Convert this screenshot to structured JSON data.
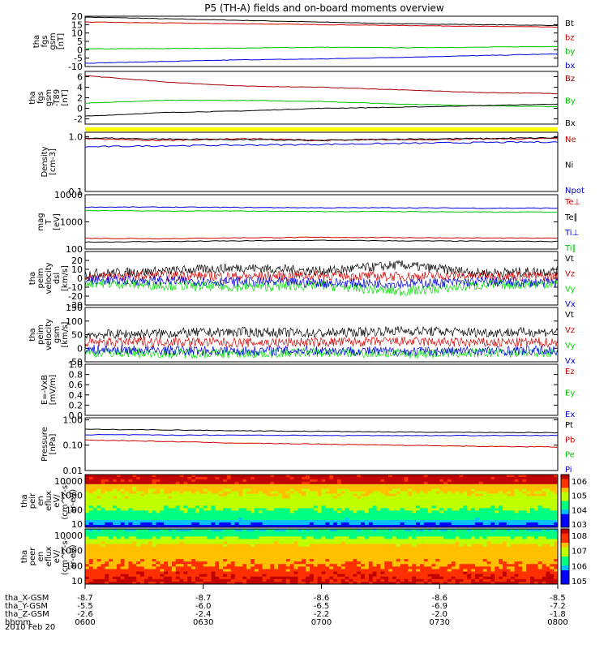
{
  "title": "P5 (TH-A) fields and on-board moments overview",
  "date_label": "2010 Feb 20",
  "colors": {
    "black": "#000000",
    "red": "#d00000",
    "green": "#00e000",
    "blue": "#0000e0",
    "darkred": "#a00000",
    "yellow": "#ffff00"
  },
  "chart_data": [
    {
      "type": "line",
      "id": "fgs_gsm",
      "ylabel": [
        "tha",
        "fgs",
        "gsm",
        "[nT]"
      ],
      "yticks": [
        "20",
        "15",
        "10",
        "5",
        "0",
        "-5",
        "-10"
      ],
      "ylim": [
        -10,
        20
      ],
      "series": [
        {
          "name": "Bt",
          "color": "#000000",
          "values": [
            19.5,
            18.5,
            17.5,
            16.5,
            15.5,
            15.0,
            14.5
          ]
        },
        {
          "name": "bz",
          "color": "#d00000",
          "values": [
            16.5,
            16.0,
            15.5,
            15.0,
            14.5,
            14.0,
            13.5
          ]
        },
        {
          "name": "by",
          "color": "#00c000",
          "values": [
            0.5,
            0.7,
            1.0,
            1.5,
            1.2,
            1.5,
            2.0
          ]
        },
        {
          "name": "bx",
          "color": "#0000e0",
          "values": [
            -8.0,
            -7.0,
            -6.0,
            -5.5,
            -4.5,
            -3.5,
            -2.5
          ]
        }
      ]
    },
    {
      "type": "line",
      "id": "fgs_dsl",
      "ylabel": [
        "tha",
        "fgs",
        "gsm",
        "-T89",
        "[nT]"
      ],
      "yticks": [
        "6",
        "4",
        "2",
        "0",
        "-2"
      ],
      "ylim": [
        -3,
        7
      ],
      "series": [
        {
          "name": "Bz",
          "color": "#a00000",
          "values": [
            6.2,
            5.0,
            4.2,
            4.0,
            3.5,
            3.0,
            2.8
          ]
        },
        {
          "name": "By",
          "color": "#00c000",
          "values": [
            1.0,
            1.5,
            1.5,
            1.3,
            0.8,
            0.5,
            0.3
          ]
        },
        {
          "name": "Bx",
          "color": "#000000",
          "values": [
            -1.5,
            -0.8,
            -0.5,
            0.0,
            0.2,
            0.5,
            0.8
          ]
        }
      ]
    },
    {
      "type": "line",
      "id": "density",
      "scale": "log",
      "ylabel": [
        "Density",
        "[cm-3]"
      ],
      "yticks": [
        "1.0",
        "0.1"
      ],
      "ylim": [
        0.1,
        1.2
      ],
      "series": [
        {
          "name": "Ne",
          "color": "#d00000",
          "values": [
            0.9,
            0.85,
            0.92,
            0.85,
            0.88,
            0.9,
            0.92
          ]
        },
        {
          "name": "Ni",
          "color": "#000000",
          "values": [
            0.95,
            0.9,
            0.88,
            0.85,
            0.9,
            0.92,
            0.95
          ]
        },
        {
          "name": "Npot",
          "color": "#0000e0",
          "values": [
            0.65,
            0.68,
            0.7,
            0.72,
            0.75,
            0.78,
            0.8
          ]
        }
      ]
    },
    {
      "type": "line",
      "id": "temperature",
      "scale": "log",
      "ylabel": [
        "mag",
        "T",
        "[eV]"
      ],
      "ylabel_sup": "3",
      "yticks": [
        "10000",
        "1000",
        "100"
      ],
      "ylim": [
        100,
        10000
      ],
      "series": [
        {
          "name": "Te⊥",
          "color": "#d00000",
          "values": [
            250,
            240,
            260,
            270,
            265,
            255,
            250
          ]
        },
        {
          "name": "Te∥",
          "color": "#000000",
          "values": [
            180,
            190,
            200,
            210,
            200,
            195,
            190
          ]
        },
        {
          "name": "Ti⊥",
          "color": "#0000e0",
          "values": [
            3500,
            3500,
            3400,
            3300,
            3300,
            3200,
            3200
          ]
        },
        {
          "name": "Ti∥",
          "color": "#00c000",
          "values": [
            2600,
            2500,
            2500,
            2400,
            2400,
            2300,
            2300
          ]
        }
      ]
    },
    {
      "type": "line",
      "id": "peim_velocity",
      "ylabel": [
        "tha",
        "peim",
        "velocity",
        "dsl",
        "[km/s]"
      ],
      "yticks": [
        "20",
        "10",
        "0",
        "-10",
        "-20",
        "-30"
      ],
      "ylim": [
        -30,
        30
      ],
      "series": [
        {
          "name": "Vt",
          "color": "#000000",
          "values": [
            5,
            8,
            12,
            8,
            15,
            6,
            8
          ]
        },
        {
          "name": "Vz",
          "color": "#d00000",
          "values": [
            2,
            3,
            2,
            3,
            2,
            3,
            2
          ]
        },
        {
          "name": "Vy",
          "color": "#00e000",
          "values": [
            -5,
            -8,
            -10,
            -8,
            -15,
            -8,
            -6
          ]
        },
        {
          "name": "Vx",
          "color": "#0000e0",
          "values": [
            -2,
            -3,
            -4,
            -5,
            -6,
            -4,
            -5
          ]
        }
      ]
    },
    {
      "type": "line",
      "id": "peim_velocity_gsm",
      "ylabel": [
        "tha",
        "peim",
        "velocity",
        "gsm",
        "[km/s]"
      ],
      "yticks": [
        "150",
        "100",
        "50",
        "0",
        "-50"
      ],
      "ylim": [
        -50,
        150
      ],
      "series": [
        {
          "name": "Vt",
          "color": "#000000",
          "values": [
            50,
            55,
            60,
            55,
            65,
            58,
            60
          ]
        },
        {
          "name": "Vz",
          "color": "#d00000",
          "values": [
            20,
            25,
            20,
            22,
            25,
            20,
            22
          ]
        },
        {
          "name": "Vy",
          "color": "#00e000",
          "values": [
            -15,
            -18,
            -20,
            -15,
            -20,
            -18,
            -15
          ]
        },
        {
          "name": "Vx",
          "color": "#0000e0",
          "values": [
            -5,
            -8,
            -10,
            -8,
            -12,
            -10,
            -8
          ]
        }
      ]
    },
    {
      "type": "line",
      "id": "efield",
      "ylabel": [
        "E=-VxB",
        "[mV/m]"
      ],
      "yticks": [
        "1.0",
        "0.8",
        "0.6",
        "0.4",
        "0.2",
        "0.0"
      ],
      "ylim": [
        0,
        1
      ],
      "series": [
        {
          "name": "Ez",
          "color": "#d00000",
          "values": []
        },
        {
          "name": "Ey",
          "color": "#00c000",
          "values": []
        },
        {
          "name": "Ex",
          "color": "#0000e0",
          "values": []
        }
      ]
    },
    {
      "type": "line",
      "id": "pressure",
      "scale": "log",
      "ylabel": [
        "Pressure",
        "[nPa]"
      ],
      "yticks": [
        "1.00",
        "0.10",
        "0.01"
      ],
      "ylim": [
        0.01,
        1.2
      ],
      "series": [
        {
          "name": "Pt",
          "color": "#000000",
          "values": [
            0.42,
            0.4,
            0.37,
            0.35,
            0.33,
            0.32,
            0.31
          ]
        },
        {
          "name": "Pb",
          "color": "#d00000",
          "values": [
            0.16,
            0.14,
            0.12,
            0.11,
            0.1,
            0.09,
            0.085
          ]
        },
        {
          "name": "Pe",
          "color": "#00c000",
          "values": []
        },
        {
          "name": "Pi",
          "color": "#0000e0",
          "values": [
            0.26,
            0.25,
            0.25,
            0.24,
            0.24,
            0.24,
            0.24
          ]
        }
      ]
    },
    {
      "type": "heatmap",
      "id": "peir_spectrogram",
      "ylabel": [
        "tha",
        "peir",
        "en",
        "eflux",
        "eV/",
        "(cm^2-s-",
        "sr-eV)"
      ],
      "yticks": [
        "10000",
        "1000",
        "100",
        "10"
      ],
      "colorbar_ticks": [
        "10^6",
        "10^5",
        "10^4",
        "10^3"
      ]
    },
    {
      "type": "heatmap",
      "id": "peer_spectrogram",
      "ylabel": [
        "tha",
        "peer",
        "en",
        "eflux",
        "eV/",
        "(cm^2-s-",
        "sr-eV)"
      ],
      "yticks": [
        "10000",
        "1000",
        "100",
        "10"
      ],
      "colorbar_ticks": [
        "10^8",
        "10^7",
        "10^6",
        "10^5"
      ]
    }
  ],
  "x_axis": {
    "rows": [
      {
        "label": "tha_X-GSM",
        "values": [
          "-8.7",
          "-8.7",
          "-8.6",
          "-8.6",
          "-8.5"
        ]
      },
      {
        "label": "tha_Y-GSM",
        "values": [
          "-5.5",
          "-6.0",
          "-6.5",
          "-6.9",
          "-7.2"
        ]
      },
      {
        "label": "tha_Z-GSM",
        "values": [
          "-2.6",
          "-2.4",
          "-2.2",
          "-2.0",
          "-1.8"
        ]
      },
      {
        "label": "hhmm",
        "values": [
          "0600",
          "0630",
          "0700",
          "0730",
          "0800"
        ]
      }
    ]
  }
}
